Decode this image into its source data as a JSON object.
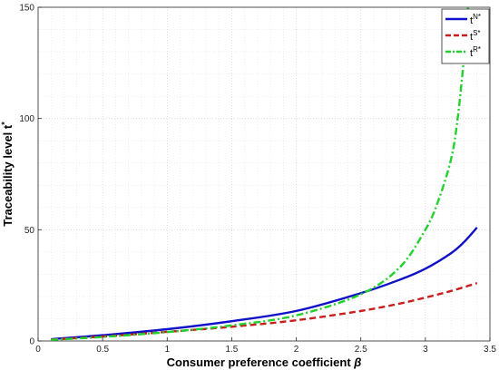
{
  "chart_data": {
    "type": "line",
    "xlabel": "Consumer preference coefficient ",
    "xlabel_symbol": "β",
    "ylabel": "Traceability level t",
    "ylabel_sup": "*",
    "xlim": [
      0,
      3.5
    ],
    "ylim": [
      0,
      150
    ],
    "xticks": [
      0,
      0.5,
      1,
      1.5,
      2,
      2.5,
      3,
      3.5
    ],
    "xtick_labels": [
      "0",
      "0.5",
      "1",
      "1.5",
      "2",
      "2.5",
      "3",
      "3.5"
    ],
    "yticks": [
      0,
      50,
      100,
      150
    ],
    "ytick_labels": [
      "0",
      "50",
      "100",
      "150"
    ],
    "grid": true,
    "legend_position": "top-right",
    "series": [
      {
        "name": "t",
        "name_sup": "N*",
        "color": "#1010c8",
        "style": "solid",
        "x": [
          0.1,
          0.5,
          1.0,
          1.5,
          2.0,
          2.5,
          2.8,
          3.0,
          3.2,
          3.3,
          3.4
        ],
        "y": [
          0.8,
          2.6,
          5.3,
          8.9,
          13.5,
          21.5,
          27.5,
          32.5,
          39.5,
          44.5,
          51.0
        ]
      },
      {
        "name": "t",
        "name_sup": "S*",
        "color": "#c81e1e",
        "style": "dashed",
        "x": [
          0.1,
          0.5,
          1.0,
          1.5,
          2.0,
          2.5,
          2.8,
          3.0,
          3.2,
          3.4
        ],
        "y": [
          0.6,
          2.0,
          4.1,
          6.4,
          9.3,
          13.5,
          16.8,
          19.5,
          22.5,
          26.0
        ]
      },
      {
        "name": "t",
        "name_sup": "R*",
        "color": "#22d02e",
        "style": "dash-dot",
        "x": [
          0.1,
          0.5,
          1.0,
          1.5,
          2.0,
          2.5,
          2.8,
          3.0,
          3.1,
          3.2,
          3.25,
          3.3,
          3.33
        ],
        "y": [
          0.5,
          1.8,
          4.0,
          7.0,
          11.5,
          21.0,
          33.0,
          50.0,
          63.0,
          82.0,
          100.0,
          128.0,
          150.0
        ]
      }
    ]
  }
}
